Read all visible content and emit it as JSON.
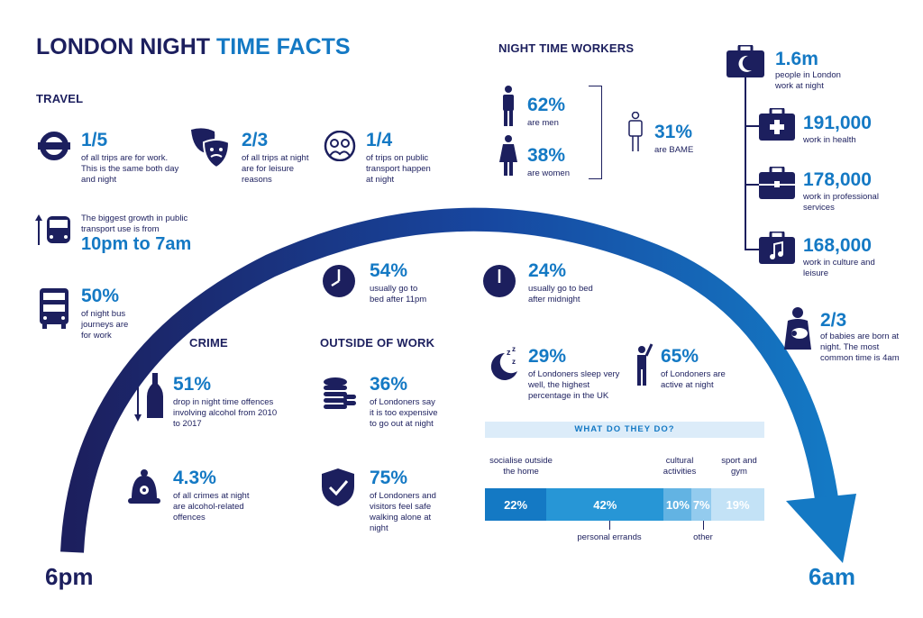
{
  "title": {
    "part1": "LONDON NIGHT ",
    "part2": "TIME FACTS"
  },
  "travel": {
    "heading": "TRAVEL",
    "facts": [
      {
        "value": "1/5",
        "text": "of all trips are for work. This is the same both day and night"
      },
      {
        "value": "2/3",
        "text": "of all trips at night are for leisure reasons"
      },
      {
        "value": "1/4",
        "text": "of trips on public transport happen at night"
      }
    ],
    "growth_text": "The biggest growth in public transport use is from",
    "growth_value": "10pm to 7am",
    "bus": {
      "value": "50%",
      "text": "of night bus journeys are for work"
    }
  },
  "workers": {
    "heading": "NIGHT TIME WORKERS",
    "men": {
      "value": "62%",
      "text": "are men"
    },
    "women": {
      "value": "38%",
      "text": "are women"
    },
    "bame": {
      "value": "31%",
      "text": "are BAME"
    }
  },
  "sectors": [
    {
      "value": "1.6m",
      "text": "people in London work at night"
    },
    {
      "value": "191,000",
      "text": "work in health"
    },
    {
      "value": "178,000",
      "text": "work in professional services"
    },
    {
      "value": "168,000",
      "text": "work in culture and leisure"
    }
  ],
  "sleep": {
    "bed11": {
      "value": "54%",
      "text": "usually go to bed after 11pm"
    },
    "midnight": {
      "value": "24%",
      "text": "usually go to bed after midnight"
    },
    "sleepwell": {
      "value": "29%",
      "text": "of Londoners sleep very well, the highest percentage in the UK"
    },
    "active": {
      "value": "65%",
      "text": "of Londoners are active at night"
    }
  },
  "babies": {
    "value": "2/3",
    "text": "of babies are born at night. The most common time is 4am"
  },
  "crime": {
    "heading": "CRIME",
    "alcohol": {
      "value": "51%",
      "text": "drop in night time offences involving alcohol from 2010 to 2017"
    },
    "crimes": {
      "value": "4.3%",
      "text": "of all crimes at night are alcohol-related offences"
    }
  },
  "outside": {
    "heading": "OUTSIDE OF WORK",
    "expensive": {
      "value": "36%",
      "text": "of Londoners say it is too expensive to go out at night"
    },
    "safe": {
      "value": "75%",
      "text": "of Londoners and visitors feel safe walking alone at night"
    }
  },
  "activities": {
    "heading": "WHAT DO THEY DO?",
    "segments": [
      {
        "label": "socialise outside the home",
        "value": 22,
        "display": "22%",
        "color": "#1479c4"
      },
      {
        "label": "personal errands",
        "value": 42,
        "display": "42%",
        "color": "#2796d6"
      },
      {
        "label": "cultural activities",
        "value": 10,
        "display": "10%",
        "color": "#62b3e3"
      },
      {
        "label": "other",
        "value": 7,
        "display": "7%",
        "color": "#93cbee"
      },
      {
        "label": "sport and gym",
        "value": 19,
        "display": "19%",
        "color": "#c3e2f6"
      }
    ]
  },
  "time": {
    "start": "6pm",
    "end": "6am"
  },
  "colors": {
    "navy": "#1c1f5e",
    "blue": "#1479c4",
    "light": "#dcecf9"
  }
}
